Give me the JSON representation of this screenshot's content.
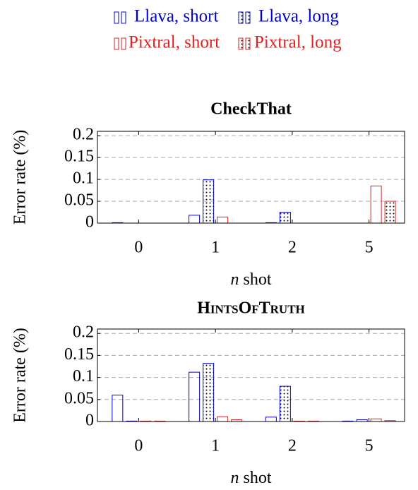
{
  "chart_data": [
    {
      "type": "bar",
      "title": "CheckThat",
      "x_label": "n",
      "x_label_suffix": "shot",
      "y_label": "Error rate (%)",
      "categories": [
        "0",
        "1",
        "2",
        "5"
      ],
      "series": [
        {
          "name": "Llava, short",
          "color": "#0000cc",
          "pattern": "none",
          "values": [
            0.001,
            0.018,
            0.001,
            0
          ]
        },
        {
          "name": "Llava, long",
          "color": "#0000cc",
          "pattern": "dots",
          "values": [
            0,
            0.099,
            0.025,
            0
          ]
        },
        {
          "name": "Pixtral, short",
          "color": "#dd2222",
          "pattern": "none",
          "values": [
            0,
            0.014,
            0,
            0.085
          ]
        },
        {
          "name": "Pixtral, long",
          "color": "#dd2222",
          "pattern": "dots",
          "values": [
            0,
            0,
            0,
            0.05
          ]
        }
      ],
      "ylim": [
        0,
        0.21
      ],
      "yticks": [
        0,
        0.05,
        0.1,
        0.15,
        0.2
      ],
      "grid": true
    },
    {
      "type": "bar",
      "title": "HintsOfTruth",
      "x_label": "n",
      "x_label_suffix": "shot",
      "y_label": "Error rate (%)",
      "categories": [
        "0",
        "1",
        "2",
        "5"
      ],
      "series": [
        {
          "name": "Llava, short",
          "color": "#0000cc",
          "pattern": "none",
          "values": [
            0.06,
            0.112,
            0.01,
            0.001
          ]
        },
        {
          "name": "Llava, long",
          "color": "#0000cc",
          "pattern": "dots",
          "values": [
            0.001,
            0.132,
            0.08,
            0.004
          ]
        },
        {
          "name": "Pixtral, short",
          "color": "#dd2222",
          "pattern": "none",
          "values": [
            0.001,
            0.011,
            0.001,
            0.006
          ]
        },
        {
          "name": "Pixtral, long",
          "color": "#dd2222",
          "pattern": "dots",
          "values": [
            0.001,
            0.004,
            0.001,
            0.002
          ]
        }
      ],
      "ylim": [
        0,
        0.21
      ],
      "yticks": [
        0,
        0.05,
        0.1,
        0.15,
        0.2
      ],
      "grid": true
    }
  ]
}
